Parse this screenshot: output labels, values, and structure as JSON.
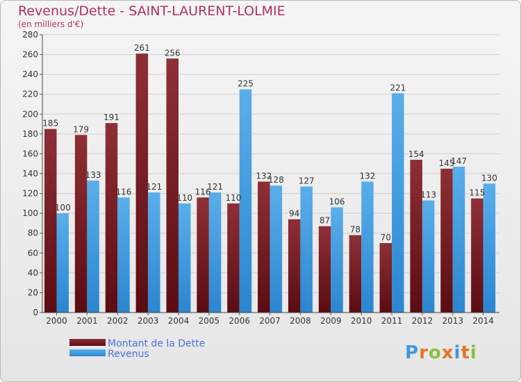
{
  "chart_data": {
    "type": "bar",
    "title": "Revenus/Dette - SAINT-LAURENT-LOLMIE",
    "subtitle": "(en milliers d'€)",
    "xlabel": "",
    "ylabel": "",
    "ylim": [
      0,
      280
    ],
    "yticks": [
      0,
      20,
      40,
      60,
      80,
      100,
      120,
      140,
      160,
      180,
      200,
      220,
      240,
      260,
      280
    ],
    "grid": true,
    "legend_position": "bottom-left",
    "categories": [
      "2000",
      "2001",
      "2002",
      "2003",
      "2004",
      "2005",
      "2006",
      "2007",
      "2008",
      "2009",
      "2010",
      "2011",
      "2012",
      "2013",
      "2014"
    ],
    "series": [
      {
        "name": "Montant de la Dette",
        "color": "#7a1f26",
        "values": [
          185,
          179,
          191,
          261,
          256,
          116,
          110,
          132,
          94,
          87,
          78,
          70,
          154,
          145,
          115
        ]
      },
      {
        "name": "Revenus",
        "color": "#3d98e0",
        "values": [
          100,
          133,
          116,
          121,
          110,
          121,
          225,
          128,
          127,
          106,
          132,
          221,
          113,
          147,
          130
        ]
      }
    ]
  },
  "logo": {
    "text": "Proxiti"
  }
}
